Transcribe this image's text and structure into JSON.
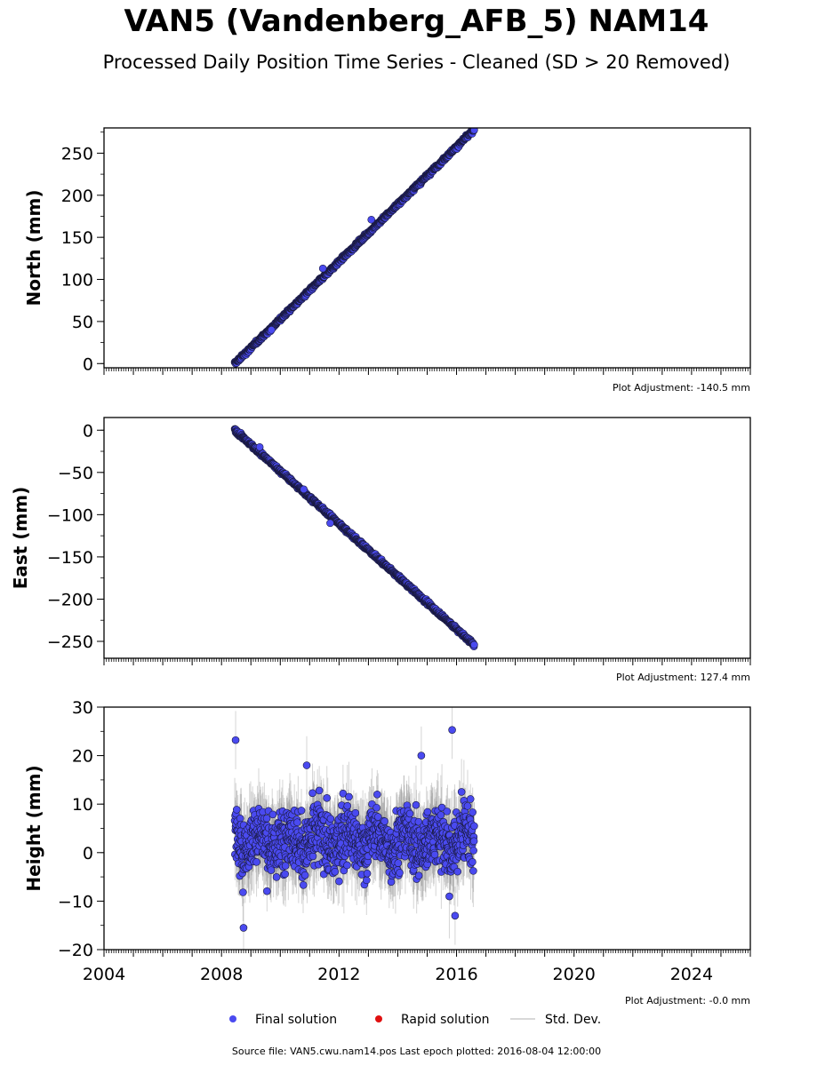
{
  "title": "VAN5 (Vandenberg_AFB_5) NAM14",
  "subtitle": "Processed Daily Position Time Series - Cleaned (SD > 20 Removed)",
  "source_text": "Source file: VAN5.cwu.nam14.pos  Last epoch plotted: 2016-08-04 12:00:00",
  "legend": [
    {
      "label": "Final solution",
      "color": "#4a4af0"
    },
    {
      "label": "Rapid solution",
      "color": "#e01010"
    },
    {
      "label": "Std. Dev.",
      "color": "#cccccc"
    }
  ],
  "colors": {
    "final": "#4a4af0",
    "rapid": "#e01010",
    "stddev": "#888888"
  },
  "chart_data": [
    {
      "type": "scatter",
      "ylabel": "North (mm)",
      "xlim": [
        2004,
        2026
      ],
      "ylim": [
        -5,
        280
      ],
      "yticks": [
        0,
        50,
        100,
        150,
        200,
        250
      ],
      "xticks": [
        2004,
        2008,
        2012,
        2016,
        2020,
        2024
      ],
      "show_xtick_labels": false,
      "adjustment": "Plot Adjustment: -140.5 mm",
      "series": [
        {
          "kind": "trend",
          "x_start": 2008.45,
          "x_end": 2016.6,
          "y_start": 0,
          "y_end": 278,
          "noise": 2.5,
          "sd": 4,
          "outliers": [
            [
              2011.45,
              113
            ],
            [
              2013.1,
              171
            ],
            [
              2009.7,
              40
            ]
          ]
        }
      ]
    },
    {
      "type": "scatter",
      "ylabel": "East (mm)",
      "xlim": [
        2004,
        2026
      ],
      "ylim": [
        -270,
        15
      ],
      "yticks": [
        0,
        -50,
        -100,
        -150,
        -200,
        -250
      ],
      "xticks": [
        2004,
        2008,
        2012,
        2016,
        2020,
        2024
      ],
      "show_xtick_labels": false,
      "adjustment": "Plot Adjustment: 127.4 mm",
      "series": [
        {
          "kind": "trend",
          "x_start": 2008.45,
          "x_end": 2016.6,
          "y_start": 0,
          "y_end": -254,
          "noise": 2.5,
          "sd": 4,
          "outliers": [
            [
              2009.3,
              -20
            ],
            [
              2010.8,
              -70
            ],
            [
              2011.7,
              -110
            ]
          ]
        }
      ]
    },
    {
      "type": "scatter",
      "ylabel": "Height (mm)",
      "xlim": [
        2004,
        2026
      ],
      "ylim": [
        -20,
        30
      ],
      "yticks": [
        30,
        20,
        10,
        0,
        -10,
        -20
      ],
      "xticks": [
        2004,
        2008,
        2012,
        2016,
        2020,
        2024
      ],
      "show_xtick_labels": true,
      "adjustment": "Plot Adjustment: -0.0 mm",
      "series": [
        {
          "kind": "noise",
          "x_start": 2008.45,
          "x_end": 2016.6,
          "mean": 2.5,
          "noise": 5,
          "sd": 6,
          "outliers": [
            [
              2008.48,
              23.2
            ],
            [
              2015.85,
              25.3
            ],
            [
              2008.75,
              -15.5
            ],
            [
              2014.8,
              20
            ],
            [
              2010.9,
              18
            ],
            [
              2015.95,
              -13
            ]
          ]
        }
      ]
    }
  ]
}
